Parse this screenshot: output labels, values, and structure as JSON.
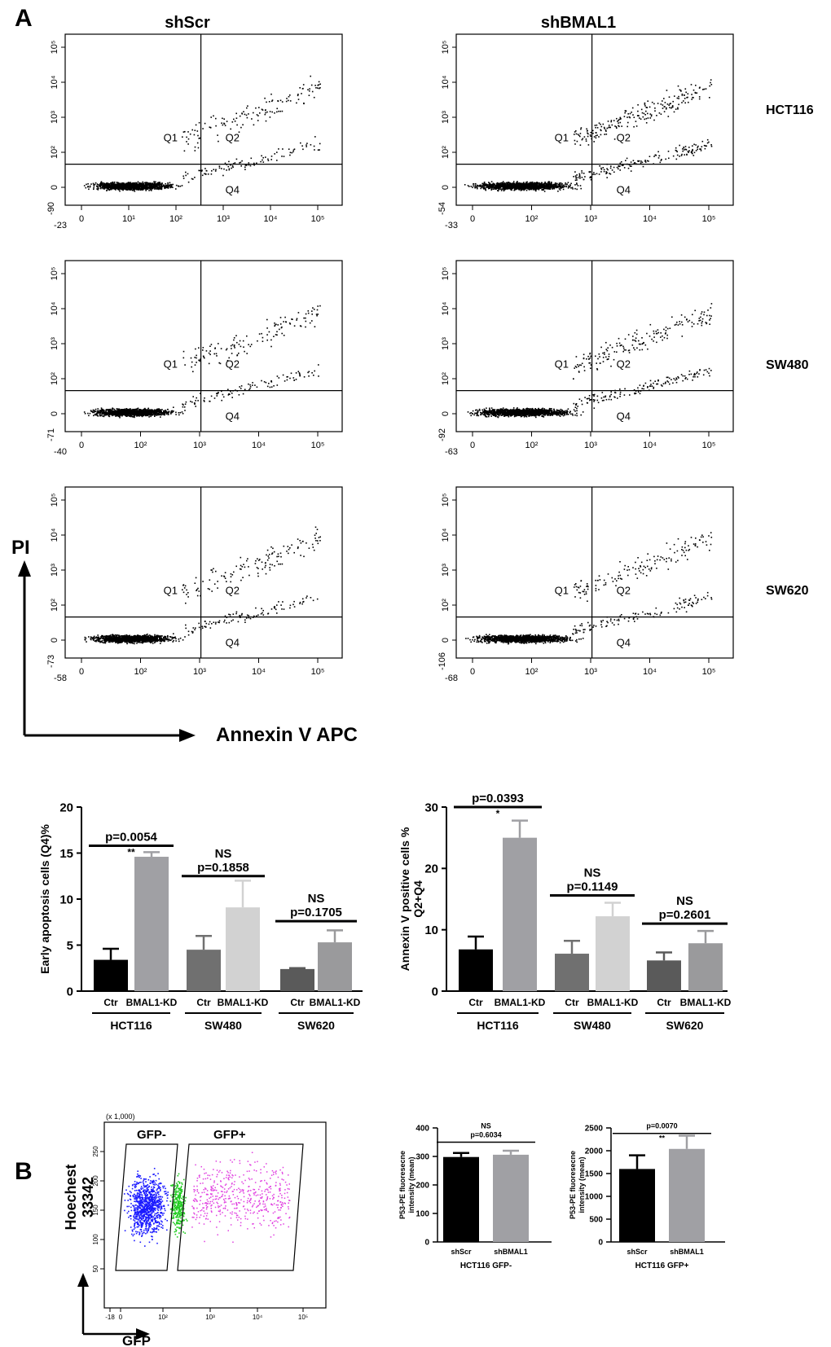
{
  "panel_A": {
    "letter": "A",
    "col_titles": [
      "shScr",
      "shBMAL1"
    ],
    "row_labels": [
      "HCT116",
      "SW480",
      "SW620"
    ],
    "y_axis_label": "PI",
    "x_axis_label": "Annexin V APC",
    "quadrant_labels": [
      "Q1",
      "Q2",
      "Q4"
    ],
    "flow_plots": [
      {
        "y_min_label": "-90",
        "x_min_label": "-23",
        "x_ticks": [
          "0",
          "10¹",
          "10²",
          "10³",
          "10⁴",
          "10⁵"
        ],
        "y_ticks": [
          "0",
          "10²",
          "10³",
          "10⁴",
          "10⁵"
        ],
        "level": 0.15
      },
      {
        "y_min_label": "-54",
        "x_min_label": "-33",
        "x_ticks": [
          "0",
          "10²",
          "10³",
          "10⁴",
          "10⁵"
        ],
        "y_ticks": [
          "0",
          "10²",
          "10³",
          "10⁴",
          "10⁵"
        ],
        "level": 0.4
      },
      {
        "y_min_label": "-71",
        "x_min_label": "-40",
        "x_ticks": [
          "0",
          "10²",
          "10³",
          "10⁴",
          "10⁵"
        ],
        "y_ticks": [
          "0",
          "10²",
          "10³",
          "10⁴",
          "10⁵"
        ],
        "level": 0.15
      },
      {
        "y_min_label": "-92",
        "x_min_label": "-63",
        "x_ticks": [
          "0",
          "10²",
          "10³",
          "10⁴",
          "10⁵"
        ],
        "y_ticks": [
          "0",
          "10²",
          "10³",
          "10⁴",
          "10⁵"
        ],
        "level": 0.3
      },
      {
        "y_min_label": "-73",
        "x_min_label": "-58",
        "x_ticks": [
          "0",
          "10²",
          "10³",
          "10⁴",
          "10⁵"
        ],
        "y_ticks": [
          "0",
          "10²",
          "10³",
          "10⁴",
          "10⁵"
        ],
        "level": 0.15
      },
      {
        "y_min_label": "-106",
        "x_min_label": "-68",
        "x_ticks": [
          "0",
          "10²",
          "10³",
          "10⁴",
          "10⁵"
        ],
        "y_ticks": [
          "0",
          "10²",
          "10³",
          "10⁴",
          "10⁵"
        ],
        "level": 0.2
      }
    ]
  },
  "panel_B": {
    "letter": "B",
    "gfp_plot": {
      "y_label_line1": "Hoechest",
      "y_label_line2": "33342",
      "x_label": "GFP",
      "gate_neg": "GFP-",
      "gate_pos": "GFP+",
      "y_multiplier": "(x 1,000)",
      "y_ticks": [
        "50",
        "100",
        "150",
        "200",
        "250"
      ],
      "x_ticks": [
        "-18",
        "0",
        "10²",
        "10³",
        "10⁴",
        "10⁵"
      ]
    }
  },
  "colors": {
    "black": "#000000",
    "dark_grey": "#707070",
    "mid_grey": "#a0a0a4",
    "light_grey": "#d2d2d2",
    "grey2": "#9a9a9c",
    "gfp_neg": "#1a1aff",
    "gfp_mid": "#22cc22",
    "gfp_pos": "#e040e0"
  },
  "chart_data": [
    {
      "type": "bar",
      "title": "",
      "ylabel": "Early apoptosis cells (Q4)%",
      "ylim": [
        0,
        20
      ],
      "y_ticks": [
        "0",
        "5",
        "10",
        "15",
        "20"
      ],
      "categories": [
        "Ctr",
        "BMAL1-KD",
        "Ctr",
        "BMAL1-KD",
        "Ctr",
        "BMAL1-KD"
      ],
      "groups": [
        "HCT116",
        "SW480",
        "SW620"
      ],
      "values": [
        3.4,
        14.6,
        4.5,
        9.1,
        2.4,
        5.3
      ],
      "errors": [
        1.2,
        0.5,
        1.5,
        2.9,
        0.1,
        1.3
      ],
      "colors": [
        "#000000",
        "#a0a0a4",
        "#707070",
        "#d2d2d2",
        "#5a5a5a",
        "#9a9a9c"
      ],
      "stats": [
        {
          "group": "HCT116",
          "stars": "**",
          "p": "p=0.0054",
          "ns": "",
          "y": 15.8
        },
        {
          "group": "SW480",
          "stars": "",
          "p": "p=0.1858",
          "ns": "NS",
          "y": 12.5
        },
        {
          "group": "SW620",
          "stars": "",
          "p": "p=0.1705",
          "ns": "NS",
          "y": 7.6
        }
      ]
    },
    {
      "type": "bar",
      "title": "",
      "ylabel": "Annexin V positive cells %",
      "ylabel2": "Q2+Q4",
      "ylim": [
        0,
        30
      ],
      "y_ticks": [
        "0",
        "10",
        "20",
        "30"
      ],
      "categories": [
        "Ctr",
        "BMAL1-KD",
        "Ctr",
        "BMAL1-KD",
        "Ctr",
        "BMAL1-KD"
      ],
      "groups": [
        "HCT116",
        "SW480",
        "SW620"
      ],
      "values": [
        6.8,
        25.0,
        6.1,
        12.2,
        5.0,
        7.8
      ],
      "errors": [
        2.1,
        2.8,
        2.1,
        2.2,
        1.3,
        2.0
      ],
      "colors": [
        "#000000",
        "#a0a0a4",
        "#707070",
        "#d2d2d2",
        "#5a5a5a",
        "#9a9a9c"
      ],
      "stats": [
        {
          "group": "HCT116",
          "stars": "*",
          "p": "p=0.0393",
          "ns": "",
          "y": 30.0
        },
        {
          "group": "SW480",
          "stars": "",
          "p": "p=0.1149",
          "ns": "NS",
          "y": 15.6
        },
        {
          "group": "SW620",
          "stars": "",
          "p": "p=0.2601",
          "ns": "NS",
          "y": 11.0
        }
      ]
    },
    {
      "type": "bar",
      "title": "",
      "ylabel": "P53-PE fluoresecne",
      "ylabel2": "intensity (mean)",
      "ylim": [
        0,
        400
      ],
      "y_ticks": [
        "0",
        "100",
        "200",
        "300",
        "400"
      ],
      "categories": [
        "shScr",
        "shBMAL1"
      ],
      "group_label": "HCT116 GFP-",
      "values": [
        298,
        306
      ],
      "errors": [
        14,
        14
      ],
      "colors": [
        "#000000",
        "#a0a0a4"
      ],
      "stats": [
        {
          "stars": "",
          "p": "p=0.6034",
          "ns": "NS",
          "y": 350
        }
      ]
    },
    {
      "type": "bar",
      "title": "",
      "ylabel": "P53-PE fluoresecne",
      "ylabel2": "intensity (mean)",
      "ylim": [
        0,
        2500
      ],
      "y_ticks": [
        "0",
        "500",
        "1000",
        "1500",
        "2000",
        "2500"
      ],
      "categories": [
        "shScr",
        "shBMAL1"
      ],
      "group_label": "HCT116 GFP+",
      "values": [
        1600,
        2040
      ],
      "errors": [
        300,
        290
      ],
      "colors": [
        "#000000",
        "#a0a0a4"
      ],
      "stats": [
        {
          "stars": "**",
          "p": "p=0.0070",
          "ns": "",
          "y": 2380
        }
      ]
    }
  ]
}
